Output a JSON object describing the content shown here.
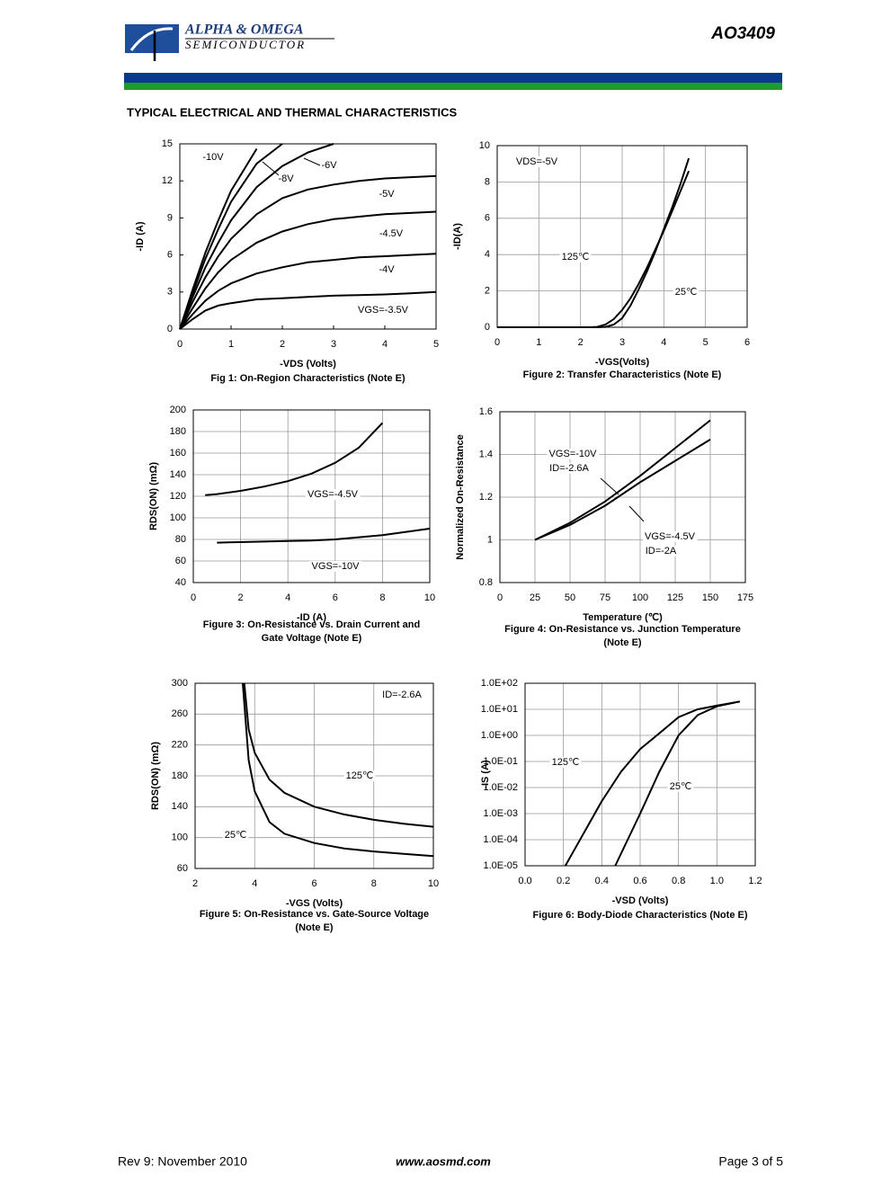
{
  "header": {
    "company": "ALPHA & OMEGA",
    "division": "SEMICONDUCTOR",
    "part": "AO3409"
  },
  "section_title": "TYPICAL ELECTRICAL AND THERMAL CHARACTERISTICS",
  "chart_data": [
    {
      "type": "line",
      "xlabel": "-VDS (Volts)",
      "ylabel": "-ID (A)",
      "caption": [
        "Fig 1: On-Region Characteristics (Note E)"
      ],
      "xlim": [
        0,
        5
      ],
      "ylim": [
        0,
        15
      ],
      "xticks": [
        0,
        1,
        2,
        3,
        4,
        5
      ],
      "yticks": [
        0,
        3,
        6,
        9,
        12,
        15
      ],
      "grid": false,
      "x": [
        0,
        0.25,
        0.5,
        0.75,
        1,
        1.5,
        2,
        2.5,
        3,
        3.5,
        4,
        4.5,
        5
      ],
      "series": [
        {
          "name": "-10V",
          "color": "#000000",
          "values": [
            0,
            3.2,
            6.2,
            8.8,
            11.2,
            14.6,
            null,
            null,
            null,
            null,
            null,
            null,
            null
          ]
        },
        {
          "name": "-8V",
          "color": "#000000",
          "values": [
            0,
            2.9,
            5.7,
            8.1,
            10.3,
            13.4,
            15,
            null,
            null,
            null,
            null,
            null,
            null
          ]
        },
        {
          "name": "-6V",
          "color": "#000000",
          "values": [
            0,
            2.6,
            5,
            7,
            8.8,
            11.5,
            13.2,
            14.3,
            15,
            null,
            null,
            null,
            null
          ]
        },
        {
          "name": "-5V",
          "color": "#000000",
          "values": [
            0,
            2.2,
            4.2,
            5.9,
            7.3,
            9.3,
            10.6,
            11.3,
            11.7,
            12,
            12.2,
            12.3,
            12.4
          ]
        },
        {
          "name": "-4.5V",
          "color": "#000000",
          "values": [
            0,
            1.7,
            3.3,
            4.6,
            5.6,
            7,
            7.9,
            8.5,
            8.9,
            9.1,
            9.3,
            9.4,
            9.5
          ]
        },
        {
          "name": "-4V",
          "color": "#000000",
          "values": [
            0,
            1.2,
            2.3,
            3.1,
            3.7,
            4.5,
            5,
            5.4,
            5.6,
            5.8,
            5.9,
            6,
            6.1
          ]
        },
        {
          "name": "VGS=-3.5V",
          "color": "#000000",
          "values": [
            0,
            0.8,
            1.5,
            1.9,
            2.1,
            2.4,
            2.5,
            2.6,
            2.7,
            2.75,
            2.8,
            2.9,
            3
          ]
        }
      ]
    },
    {
      "type": "line",
      "xlabel": "-VGS(Volts)",
      "ylabel": "-ID(A)",
      "caption": [
        "Figure 2: Transfer Characteristics (Note E)"
      ],
      "annotations": [
        "VDS=-5V"
      ],
      "xlim": [
        0,
        6
      ],
      "ylim": [
        0,
        10
      ],
      "xticks": [
        0,
        1,
        2,
        3,
        4,
        5,
        6
      ],
      "yticks": [
        0,
        2,
        4,
        6,
        8,
        10
      ],
      "grid": true,
      "x": [
        0,
        1,
        2,
        2.2,
        2.4,
        2.6,
        2.8,
        3,
        3.2,
        3.4,
        3.6,
        3.8,
        4,
        4.2,
        4.4,
        4.6
      ],
      "series": [
        {
          "name": "125℃",
          "color": "#000000",
          "values": [
            0,
            0,
            0,
            0,
            0.02,
            0.15,
            0.45,
            0.95,
            1.6,
            2.4,
            3.3,
            4.3,
            5.3,
            6.4,
            7.5,
            8.6
          ]
        },
        {
          "name": "25℃",
          "color": "#000000",
          "values": [
            0,
            0,
            0,
            0,
            0,
            0.02,
            0.15,
            0.5,
            1.2,
            2.1,
            3.1,
            4.2,
            5.4,
            6.6,
            7.9,
            9.3
          ]
        }
      ]
    },
    {
      "type": "line",
      "xlabel": "-ID (A)",
      "ylabel": "RDS(ON) (mΩ)",
      "caption": [
        "Figure 3: On-Resistance vs. Drain Current and",
        "Gate Voltage (Note E)"
      ],
      "xlim": [
        0,
        10
      ],
      "ylim": [
        40,
        200
      ],
      "xticks": [
        0,
        2,
        4,
        6,
        8,
        10
      ],
      "yticks": [
        40,
        60,
        80,
        100,
        120,
        140,
        160,
        180,
        200
      ],
      "grid": true,
      "x": [
        0.5,
        1,
        2,
        3,
        4,
        5,
        6,
        7,
        8,
        9,
        10
      ],
      "series": [
        {
          "name": "VGS=-4.5V",
          "color": "#000000",
          "values": [
            121,
            122,
            125,
            129,
            134,
            141,
            151,
            165,
            188,
            null,
            null
          ]
        },
        {
          "name": "VGS=-10V",
          "color": "#000000",
          "values": [
            null,
            77,
            77.5,
            78,
            78.5,
            79,
            80,
            82,
            84,
            87,
            90
          ]
        }
      ]
    },
    {
      "type": "line",
      "xlabel": "Temperature (℃)",
      "ylabel": "Normalized On-Resistance",
      "caption": [
        "Figure 4: On-Resistance vs. Junction Temperature",
        "(Note E)"
      ],
      "annotations": [
        "ID=-2.6A",
        "ID=-2A"
      ],
      "xlim": [
        0,
        175
      ],
      "ylim": [
        0.8,
        1.6
      ],
      "xticks": [
        0,
        25,
        50,
        75,
        100,
        125,
        150,
        175
      ],
      "yticks": [
        0.8,
        1,
        1.2,
        1.4,
        1.6
      ],
      "grid": true,
      "x": [
        25,
        50,
        75,
        100,
        125,
        150
      ],
      "series": [
        {
          "name": "VGS=-10V",
          "color": "#000000",
          "values": [
            1,
            1.08,
            1.18,
            1.3,
            1.43,
            1.56
          ]
        },
        {
          "name": "VGS=-4.5V",
          "color": "#000000",
          "values": [
            1,
            1.07,
            1.16,
            1.27,
            1.37,
            1.47
          ]
        }
      ]
    },
    {
      "type": "line",
      "xlabel": "-VGS (Volts)",
      "ylabel": "RDS(ON) (mΩ)",
      "caption": [
        "Figure 5: On-Resistance vs. Gate-Source Voltage",
        "(Note E)"
      ],
      "annotations": [
        "ID=-2.6A"
      ],
      "xlim": [
        2,
        10
      ],
      "ylim": [
        60,
        300
      ],
      "xticks": [
        2,
        4,
        6,
        8,
        10
      ],
      "yticks": [
        60,
        100,
        140,
        180,
        220,
        260,
        300
      ],
      "grid": true,
      "series": [
        {
          "name": "125℃",
          "color": "#000000",
          "x": [
            3.65,
            3.8,
            4,
            4.5,
            5,
            6,
            7,
            8,
            9,
            10
          ],
          "values": [
            300,
            240,
            210,
            175,
            158,
            140,
            130,
            123,
            118,
            114
          ]
        },
        {
          "name": "25℃",
          "color": "#000000",
          "x": [
            3.6,
            3.8,
            4,
            4.5,
            5,
            6,
            7,
            8,
            9,
            10
          ],
          "values": [
            300,
            200,
            160,
            120,
            105,
            93,
            86,
            82,
            79,
            76
          ]
        }
      ]
    },
    {
      "type": "line",
      "xlabel": "-VSD (Volts)",
      "ylabel": "-IS (A)",
      "caption": [
        "Figure 6: Body-Diode Characteristics (Note E)"
      ],
      "yscale": "log",
      "xlim": [
        0,
        1.2
      ],
      "ylim": [
        1e-05,
        100
      ],
      "xticks": [
        {
          "value": 0,
          "label": "0.0"
        },
        0.2,
        0.4,
        0.6,
        0.8,
        {
          "value": 1,
          "label": "1.0"
        },
        1.2
      ],
      "yticks": [
        {
          "value": 1e-05,
          "label": "1.0E-05"
        },
        {
          "value": 0.0001,
          "label": "1.0E-04"
        },
        {
          "value": 0.001,
          "label": "1.0E-03"
        },
        {
          "value": 0.01,
          "label": "1.0E-02"
        },
        {
          "value": 0.1,
          "label": "1.0E-01"
        },
        {
          "value": 1,
          "label": "1.0E+00"
        },
        {
          "value": 10,
          "label": "1.0E+01"
        },
        {
          "value": 100,
          "label": "1.0E+02"
        }
      ],
      "grid": true,
      "series": [
        {
          "name": "125℃",
          "color": "#000000",
          "x": [
            0.21,
            0.4,
            0.5,
            0.6,
            0.7,
            0.8,
            0.9,
            1,
            1.12
          ],
          "values": [
            1e-05,
            0.003,
            0.04,
            0.3,
            1.2,
            5,
            10,
            14,
            20
          ]
        },
        {
          "name": "25℃",
          "color": "#000000",
          "x": [
            0.47,
            0.6,
            0.7,
            0.8,
            0.9,
            1,
            1.12
          ],
          "values": [
            1e-05,
            0.001,
            0.04,
            1,
            6,
            13,
            20
          ]
        }
      ]
    }
  ],
  "footer": {
    "revision": "Rev 9: November 2010",
    "website": "www.aosmd.com",
    "page": "Page 3 of 5"
  }
}
